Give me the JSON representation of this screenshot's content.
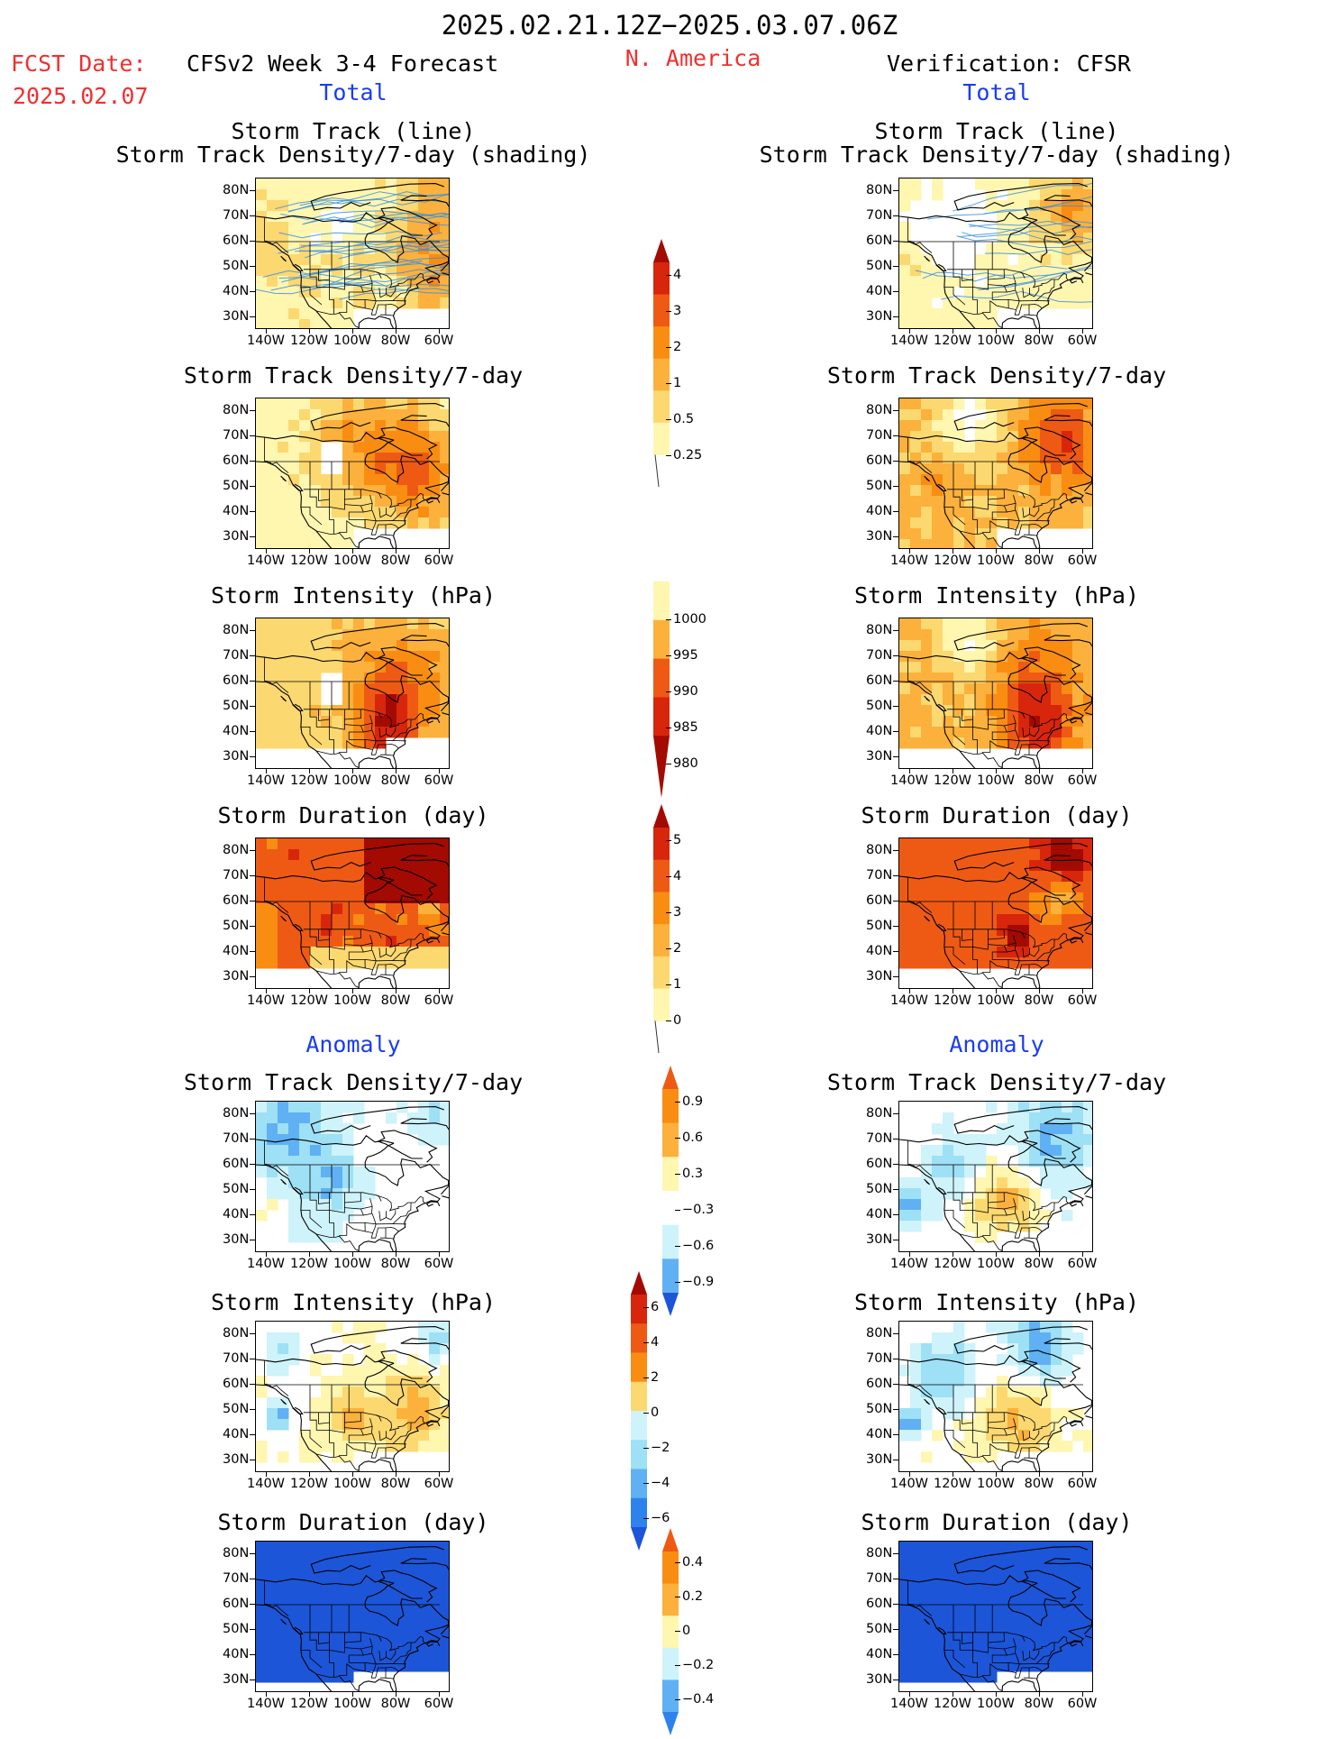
{
  "header": {
    "period": "2025.02.21.12Z−2025.03.07.06Z",
    "fcst_label": "FCST Date:",
    "fcst_date": "2025.02.07",
    "forecast_title": "CFSv2 Week 3-4 Forecast",
    "region": "N. America",
    "verification_title": "Verification: CFSR"
  },
  "sections": {
    "total": "Total",
    "anomaly": "Anomaly"
  },
  "panel_titles": {
    "track_line": "Storm Track (line)",
    "track_shading": "Storm Track Density/7-day (shading)",
    "density": "Storm Track Density/7-day",
    "intensity": "Storm Intensity (hPa)",
    "duration": "Storm Duration (day)"
  },
  "axes": {
    "lat_ticks": [
      "80N",
      "70N",
      "60N",
      "50N",
      "40N",
      "30N"
    ],
    "lon_ticks": [
      "140W",
      "120W",
      "100W",
      "80W",
      "60W"
    ]
  },
  "colors": {
    "reds": [
      "#fff6b0",
      "#fcd870",
      "#fbb13c",
      "#f98d12",
      "#ee5a14",
      "#d8260c",
      "#a30a02"
    ],
    "blues": [
      "#cef3fa",
      "#9ee0f5",
      "#5fb1f3",
      "#2d83eb",
      "#1c55d8"
    ],
    "track_line": "#3a8fe0"
  },
  "chart_data": [
    {
      "type": "heatmap",
      "region": "N. America",
      "column": "forecast",
      "section": "total",
      "title": "Storm Track (line) / Storm Track Density/7-day (shading)",
      "colorbar": [
        "0.25",
        "0.5",
        "1",
        "2",
        "3",
        "4"
      ]
    },
    {
      "type": "heatmap",
      "region": "N. America",
      "column": "verification",
      "section": "total",
      "title": "Storm Track (line) / Storm Track Density/7-day (shading)",
      "colorbar": [
        "0.25",
        "0.5",
        "1",
        "2",
        "3",
        "4"
      ]
    },
    {
      "type": "heatmap",
      "column": "forecast",
      "section": "total",
      "title": "Storm Track Density/7-day",
      "colorbar": [
        "0.25",
        "0.5",
        "1",
        "2",
        "3",
        "4"
      ]
    },
    {
      "type": "heatmap",
      "column": "verification",
      "section": "total",
      "title": "Storm Track Density/7-day",
      "colorbar": [
        "0.25",
        "0.5",
        "1",
        "2",
        "3",
        "4"
      ]
    },
    {
      "type": "heatmap",
      "column": "forecast",
      "section": "total",
      "title": "Storm Intensity (hPa)",
      "colorbar": [
        "1000",
        "995",
        "990",
        "985",
        "980"
      ]
    },
    {
      "type": "heatmap",
      "column": "verification",
      "section": "total",
      "title": "Storm Intensity (hPa)",
      "colorbar": [
        "1000",
        "995",
        "990",
        "985",
        "980"
      ]
    },
    {
      "type": "heatmap",
      "column": "forecast",
      "section": "total",
      "title": "Storm Duration (day)",
      "colorbar": [
        "0",
        "1",
        "2",
        "3",
        "4",
        "5"
      ]
    },
    {
      "type": "heatmap",
      "column": "verification",
      "section": "total",
      "title": "Storm Duration (day)",
      "colorbar": [
        "0",
        "1",
        "2",
        "3",
        "4",
        "5"
      ]
    },
    {
      "type": "heatmap",
      "column": "forecast",
      "section": "anomaly",
      "title": "Storm Track Density/7-day",
      "colorbar": [
        "0.9",
        "0.6",
        "0.3",
        "−0.3",
        "−0.6",
        "−0.9"
      ]
    },
    {
      "type": "heatmap",
      "column": "verification",
      "section": "anomaly",
      "title": "Storm Track Density/7-day",
      "colorbar": [
        "0.9",
        "0.6",
        "0.3",
        "−0.3",
        "−0.6",
        "−0.9"
      ]
    },
    {
      "type": "heatmap",
      "column": "forecast",
      "section": "anomaly",
      "title": "Storm Intensity (hPa)",
      "colorbar": [
        "6",
        "4",
        "2",
        "0",
        "−2",
        "−4",
        "−6"
      ]
    },
    {
      "type": "heatmap",
      "column": "verification",
      "section": "anomaly",
      "title": "Storm Intensity (hPa)",
      "colorbar": [
        "6",
        "4",
        "2",
        "0",
        "−2",
        "−4",
        "−6"
      ]
    },
    {
      "type": "heatmap",
      "column": "forecast",
      "section": "anomaly",
      "title": "Storm Duration (day)",
      "colorbar": [
        "0.4",
        "0.2",
        "0",
        "−0.2",
        "−0.4"
      ]
    },
    {
      "type": "heatmap",
      "column": "verification",
      "section": "anomaly",
      "title": "Storm Duration (day)",
      "colorbar": [
        "0.4",
        "0.2",
        "0",
        "−0.2",
        "−0.4"
      ]
    }
  ],
  "colorbars": {
    "density_total": [
      "4",
      "3",
      "2",
      "1",
      "0.5",
      "0.25"
    ],
    "intensity_total": [
      "1000",
      "995",
      "990",
      "985",
      "980"
    ],
    "duration_total": [
      "5",
      "4",
      "3",
      "2",
      "1",
      "0"
    ],
    "density_anom": [
      "0.9",
      "0.6",
      "0.3",
      "−0.3",
      "−0.6",
      "−0.9"
    ],
    "intensity_anom": [
      "6",
      "4",
      "2",
      "0",
      "−2",
      "−4",
      "−6"
    ],
    "duration_anom": [
      "0.4",
      "0.2",
      "0",
      "−0.2",
      "−0.4"
    ]
  }
}
